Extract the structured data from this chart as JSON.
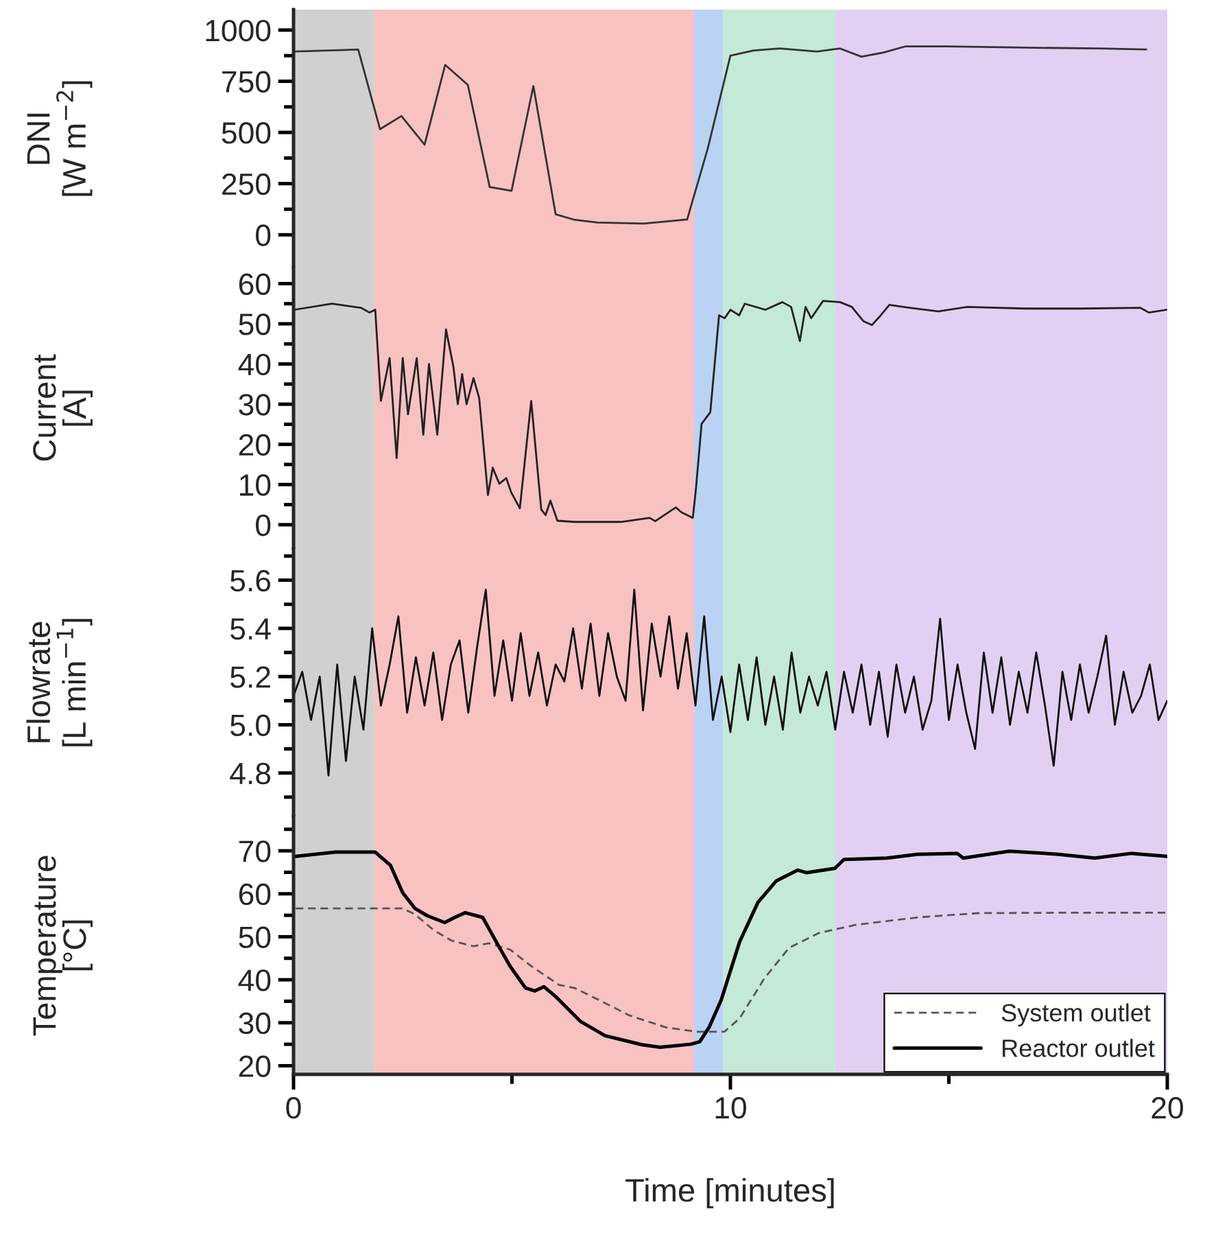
{
  "chart_data": [
    {
      "type": "line",
      "ylabel": "DNI\n[W m$^{−2}$]",
      "xlim": [
        0,
        20
      ],
      "ylim": [
        -160,
        1100
      ],
      "yticks": [
        0,
        {
          "value": 125,
          "label": null
        },
        250,
        {
          "value": 375,
          "label": null
        },
        500,
        {
          "value": 625,
          "label": null
        },
        750,
        {
          "value": 875,
          "label": null
        },
        1000
      ],
      "tick_labels": "y",
      "grid": false,
      "legend": false,
      "bands": [
        {
          "axis": "x",
          "from": 0,
          "to": 1.85,
          "color": "#d0d0d0"
        },
        {
          "axis": "x",
          "from": 1.85,
          "to": 9.17,
          "color": "#f8c2c2"
        },
        {
          "axis": "x",
          "from": 9.17,
          "to": 9.83,
          "color": "#bad2f4"
        },
        {
          "axis": "x",
          "from": 9.83,
          "to": 12.4,
          "color": "#c4e9d6"
        },
        {
          "axis": "x",
          "from": 12.4,
          "to": 20,
          "color": "#e2d0f2"
        }
      ],
      "series": [
        {
          "color": "#333333",
          "line_style": "solid",
          "x": [
            0,
            1.48,
            1.98,
            2.47,
            3.0,
            3.47,
            3.99,
            4.49,
            4.99,
            5.49,
            6.0,
            6.44,
            6.96,
            8.02,
            9.01,
            9.48,
            10.0,
            10.53,
            11.13,
            11.98,
            12.51,
            13.0,
            13.5,
            14.0,
            14.96,
            16.48,
            18.46,
            19.52
          ],
          "values": [
            895,
            905,
            516,
            580,
            440,
            830,
            732,
            233,
            215,
            727,
            100,
            73,
            60,
            55,
            75,
            420,
            875,
            900,
            910,
            895,
            910,
            870,
            890,
            920,
            920,
            915,
            910,
            905
          ]
        }
      ]
    },
    {
      "type": "line",
      "ylabel": "Current\n[A]",
      "xlim": [
        0,
        20
      ],
      "ylim": [
        -6,
        64
      ],
      "yticks": [
        0,
        {
          "value": 5,
          "label": null
        },
        10,
        {
          "value": 15,
          "label": null
        },
        20,
        {
          "value": 25,
          "label": null
        },
        30,
        {
          "value": 35,
          "label": null
        },
        40,
        {
          "value": 45,
          "label": null
        },
        50,
        {
          "value": 55,
          "label": null
        },
        60
      ],
      "tick_labels": "y",
      "grid": false,
      "legend": false,
      "bands": [
        {
          "axis": "x",
          "from": 0,
          "to": 1.85,
          "color": "#d0d0d0"
        },
        {
          "axis": "x",
          "from": 1.85,
          "to": 9.17,
          "color": "#f8c2c2"
        },
        {
          "axis": "x",
          "from": 9.17,
          "to": 9.83,
          "color": "#bad2f4"
        },
        {
          "axis": "x",
          "from": 9.83,
          "to": 12.4,
          "color": "#c4e9d6"
        },
        {
          "axis": "x",
          "from": 12.4,
          "to": 20,
          "color": "#e2d0f2"
        }
      ],
      "series": [
        {
          "color": "#222222",
          "line_style": "solid",
          "x": [
            0.02,
            0.88,
            1.54,
            1.74,
            1.87,
            2.0,
            2.2,
            2.36,
            2.5,
            2.62,
            2.82,
            2.97,
            3.1,
            3.29,
            3.49,
            3.66,
            3.76,
            3.86,
            3.96,
            4.12,
            4.25,
            4.45,
            4.56,
            4.71,
            4.87,
            4.98,
            5.18,
            5.44,
            5.67,
            5.77,
            5.88,
            6.04,
            6.43,
            7.49,
            8.15,
            8.28,
            8.75,
            8.88,
            9.14,
            9.21,
            9.34,
            9.54,
            9.74,
            9.87,
            10.0,
            10.2,
            10.33,
            10.8,
            11.19,
            11.39,
            11.59,
            11.72,
            11.85,
            12.12,
            12.51,
            12.78,
            13.04,
            13.24,
            13.44,
            13.64,
            14.1,
            14.76,
            15.42,
            16.74,
            18.06,
            19.38,
            19.58,
            19.98
          ],
          "values": [
            53.5,
            55,
            54,
            52.8,
            53.5,
            30.8,
            41.5,
            16.6,
            41.5,
            27.5,
            41.5,
            22.4,
            40,
            22.4,
            48.6,
            39.3,
            30,
            37.5,
            30,
            36.5,
            31.5,
            7.4,
            14.2,
            10.2,
            11.6,
            8.1,
            4.1,
            30.8,
            3.8,
            2.4,
            6,
            1,
            0.7,
            0.7,
            1.7,
            0.9,
            4.3,
            3.1,
            1.7,
            8.8,
            25.1,
            28,
            52.1,
            51.4,
            53.5,
            52.1,
            55,
            53.5,
            55.4,
            54.2,
            45.7,
            54.2,
            51.4,
            55.7,
            55.4,
            54.2,
            50.7,
            49.7,
            52.1,
            54.7,
            54,
            53.1,
            54.2,
            53.8,
            53.8,
            54,
            52.8,
            53.5
          ]
        }
      ]
    },
    {
      "type": "line",
      "ylabel": "Flowrate\n[L min$^{−1}$]",
      "xlim": [
        0,
        20
      ],
      "ylim": [
        4.62,
        5.73
      ],
      "yticks": [
        {
          "value": 4.7,
          "label": null
        },
        {
          "value": 4.8,
          "label": "4.8"
        },
        {
          "value": 4.9,
          "label": null
        },
        {
          "value": 5.0,
          "label": "5.0"
        },
        {
          "value": 5.1,
          "label": null
        },
        {
          "value": 5.2,
          "label": "5.2"
        },
        {
          "value": 5.3,
          "label": null
        },
        {
          "value": 5.4,
          "label": "5.4"
        },
        {
          "value": 5.5,
          "label": null
        },
        {
          "value": 5.6,
          "label": "5.6"
        },
        {
          "value": 5.7,
          "label": null
        }
      ],
      "tick_labels": "y",
      "grid": false,
      "legend": false,
      "bands": [
        {
          "axis": "x",
          "from": 0,
          "to": 1.85,
          "color": "#d0d0d0"
        },
        {
          "axis": "x",
          "from": 1.85,
          "to": 9.17,
          "color": "#f8c2c2"
        },
        {
          "axis": "x",
          "from": 9.17,
          "to": 9.83,
          "color": "#bad2f4"
        },
        {
          "axis": "x",
          "from": 9.83,
          "to": 12.4,
          "color": "#c4e9d6"
        },
        {
          "axis": "x",
          "from": 12.4,
          "to": 20,
          "color": "#e2d0f2"
        }
      ],
      "series": [
        {
          "color": "#111111",
          "line_style": "solid",
          "x": [
            0.0,
            0.2,
            0.4,
            0.6,
            0.8,
            1.0,
            1.2,
            1.4,
            1.6,
            1.8,
            2.0,
            2.2,
            2.4,
            2.6,
            2.8,
            3.0,
            3.2,
            3.4,
            3.6,
            3.8,
            4.0,
            4.2,
            4.4,
            4.6,
            4.8,
            5.0,
            5.2,
            5.4,
            5.6,
            5.8,
            6.0,
            6.2,
            6.4,
            6.6,
            6.8,
            7.0,
            7.2,
            7.4,
            7.6,
            7.8,
            8.0,
            8.2,
            8.4,
            8.6,
            8.8,
            9.0,
            9.2,
            9.4,
            9.6,
            9.8,
            10.0,
            10.2,
            10.4,
            10.6,
            10.8,
            11.0,
            11.2,
            11.4,
            11.6,
            11.8,
            12.0,
            12.2,
            12.4,
            12.6,
            12.8,
            13.0,
            13.2,
            13.4,
            13.6,
            13.8,
            14.0,
            14.2,
            14.4,
            14.6,
            14.8,
            15.0,
            15.2,
            15.4,
            15.6,
            15.8,
            16.0,
            16.2,
            16.4,
            16.6,
            16.8,
            17.0,
            17.2,
            17.4,
            17.6,
            17.8,
            18.0,
            18.2,
            18.4,
            18.6,
            18.8,
            19.0,
            19.2,
            19.4,
            19.6,
            19.8,
            20.0
          ],
          "values": [
            5.12,
            5.22,
            5.02,
            5.2,
            4.79,
            5.25,
            4.85,
            5.2,
            4.98,
            5.4,
            5.08,
            5.25,
            5.45,
            5.05,
            5.28,
            5.08,
            5.3,
            5.02,
            5.25,
            5.35,
            5.05,
            5.32,
            5.56,
            5.12,
            5.35,
            5.1,
            5.38,
            5.12,
            5.3,
            5.08,
            5.25,
            5.18,
            5.4,
            5.15,
            5.42,
            5.12,
            5.38,
            5.2,
            5.1,
            5.56,
            5.06,
            5.42,
            5.2,
            5.45,
            5.15,
            5.38,
            5.08,
            5.45,
            5.02,
            5.2,
            4.97,
            5.25,
            5.02,
            5.28,
            5.0,
            5.2,
            4.98,
            5.3,
            5.05,
            5.2,
            5.08,
            5.22,
            4.98,
            5.22,
            5.05,
            5.25,
            5.0,
            5.22,
            4.95,
            5.25,
            5.05,
            5.2,
            4.98,
            5.1,
            5.44,
            5.02,
            5.25,
            5.05,
            4.9,
            5.3,
            5.05,
            5.28,
            5.0,
            5.22,
            5.05,
            5.3,
            5.08,
            4.83,
            5.22,
            5.02,
            5.25,
            5.05,
            5.2,
            5.37,
            5.0,
            5.22,
            5.05,
            5.12,
            5.25,
            5.02,
            5.1
          ]
        }
      ]
    },
    {
      "type": "line",
      "xlabel": "Time [minutes]",
      "ylabel": "Temperature\n[°C]",
      "xlim": [
        0,
        20
      ],
      "xticks": [
        0,
        {
          "value": 5,
          "label": null
        },
        10,
        {
          "value": 15,
          "label": null
        },
        20
      ],
      "ylim": [
        18,
        78
      ],
      "yticks": [
        20,
        {
          "value": 25,
          "label": null
        },
        30,
        {
          "value": 35,
          "label": null
        },
        40,
        {
          "value": 45,
          "label": null
        },
        50,
        {
          "value": 55,
          "label": null
        },
        60,
        {
          "value": 65,
          "label": null
        },
        70,
        {
          "value": 75,
          "label": null
        }
      ],
      "grid": false,
      "legend": "bottom right",
      "bands": [
        {
          "axis": "x",
          "from": 0,
          "to": 1.85,
          "color": "#d0d0d0"
        },
        {
          "axis": "x",
          "from": 1.85,
          "to": 9.17,
          "color": "#f8c2c2"
        },
        {
          "axis": "x",
          "from": 9.17,
          "to": 9.83,
          "color": "#bad2f4"
        },
        {
          "axis": "x",
          "from": 9.83,
          "to": 12.4,
          "color": "#c4e9d6"
        },
        {
          "axis": "x",
          "from": 12.4,
          "to": 20,
          "color": "#e2d0f2"
        }
      ],
      "series": [
        {
          "name": "System outlet",
          "color": "#555555",
          "line_style": "dashed",
          "x": [
            0.05,
            2.5,
            2.78,
            3.2,
            3.62,
            4.12,
            4.47,
            4.96,
            5.45,
            6.08,
            6.43,
            6.99,
            7.69,
            8.53,
            9.23,
            9.86,
            10.21,
            10.77,
            11.34,
            12.03,
            12.88,
            14.28,
            15.68,
            17.78,
            20.0
          ],
          "values": [
            56.6,
            56.6,
            55.2,
            51.6,
            49.1,
            47.8,
            48.5,
            47,
            43.1,
            38.8,
            38.1,
            35.3,
            31.7,
            28.9,
            27.9,
            27.9,
            31,
            40.2,
            47.4,
            50.9,
            52.8,
            54.5,
            55.5,
            55.6,
            55.6
          ]
        },
        {
          "name": "Reactor outlet",
          "color": "#000000",
          "line_style": "solid",
          "x": [
            0.05,
            0.96,
            1.87,
            2.22,
            2.5,
            2.78,
            3.06,
            3.46,
            3.69,
            3.93,
            4.33,
            4.68,
            4.96,
            5.31,
            5.52,
            5.73,
            6.01,
            6.57,
            7.13,
            7.97,
            8.39,
            9.09,
            9.3,
            9.51,
            9.79,
            10.21,
            10.63,
            11.05,
            11.54,
            11.75,
            12.39,
            12.6,
            13.58,
            14.28,
            15.19,
            15.33,
            16.38,
            17.5,
            18.34,
            19.18,
            20.0
          ],
          "values": [
            68.7,
            69.7,
            69.7,
            66.6,
            60.2,
            56.6,
            54.9,
            53.3,
            54.5,
            55.6,
            54.5,
            48.1,
            43.1,
            38.1,
            37.4,
            38.4,
            36,
            30.3,
            27,
            24.9,
            24.3,
            25,
            25.6,
            28.9,
            35.3,
            48.8,
            58.0,
            63,
            65.5,
            64.9,
            65.9,
            68,
            68.3,
            69.2,
            69.4,
            68.3,
            69.9,
            69.2,
            68.3,
            69.4,
            68.7
          ]
        }
      ]
    }
  ]
}
